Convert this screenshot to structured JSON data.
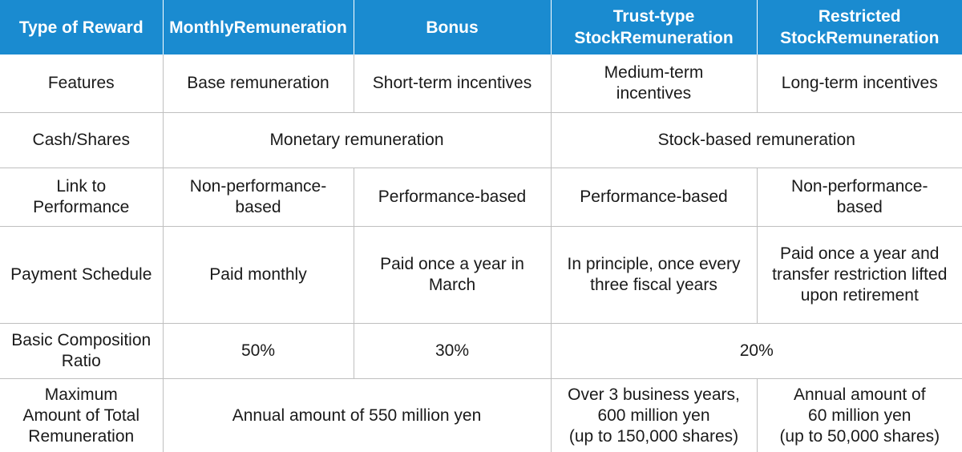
{
  "header": {
    "type_of_reward": "Type of Reward",
    "monthly": [
      "Monthly",
      "Remuneration"
    ],
    "bonus": "Bonus",
    "trust": [
      "Trust-type Stock",
      "Remuneration"
    ],
    "restricted": [
      "Restricted Stock",
      "Remuneration"
    ]
  },
  "rows": {
    "features": {
      "label": "Features",
      "monthly": "Base remuneration",
      "bonus": "Short-term incentives",
      "trust": [
        "Medium-term",
        "incentives"
      ],
      "restricted": "Long-term incentives"
    },
    "cash": {
      "label": "Cash/Shares",
      "monetary": "Monetary remuneration",
      "stock": "Stock-based remuneration"
    },
    "link": {
      "label": [
        "Link to",
        "Performance"
      ],
      "monthly": [
        "Non-performance-",
        "based"
      ],
      "bonus": "Performance-based",
      "trust": "Performance-based",
      "restricted": [
        "Non-performance-",
        "based"
      ]
    },
    "payment": {
      "label": "Payment Schedule",
      "monthly": "Paid monthly",
      "bonus": [
        "Paid once a year in",
        "March"
      ],
      "trust": [
        "In principle, once every",
        "three fiscal years"
      ],
      "restricted": [
        "Paid once a year and",
        "transfer restriction lifted",
        "upon retirement"
      ]
    },
    "ratio": {
      "label": [
        "Basic Composition",
        "Ratio"
      ],
      "monthly": "50%",
      "bonus": "30%",
      "stock": "20%"
    },
    "max": {
      "label": [
        "Maximum",
        "Amount of Total",
        "Remuneration"
      ],
      "monetary": "Annual amount of 550 million yen",
      "trust": [
        "Over 3 business years,",
        "600 million yen",
        "(up to 150,000 shares)"
      ],
      "restricted": [
        "Annual amount of",
        "60 million yen",
        "(up to 50,000 shares)"
      ]
    }
  }
}
